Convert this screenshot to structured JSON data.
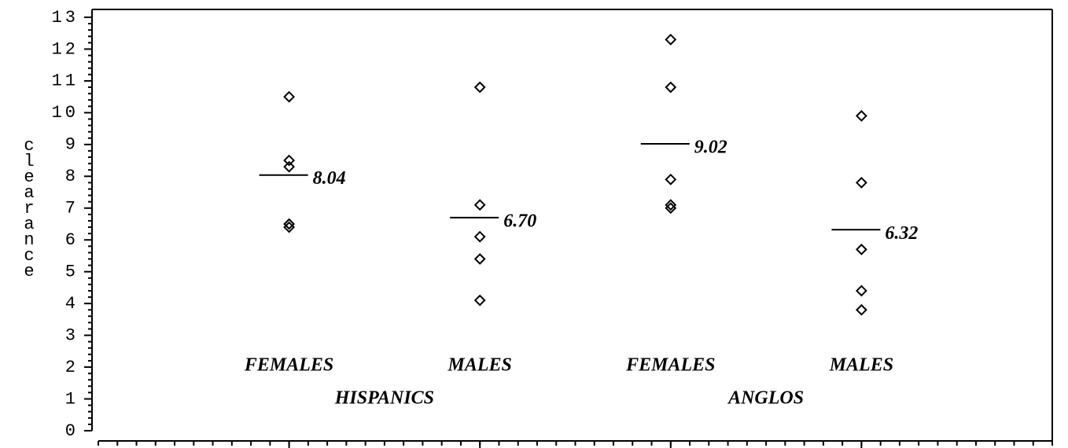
{
  "chart_data": {
    "type": "dot",
    "y_label": "clearance",
    "ylim": [
      0,
      13
    ],
    "yticks": [
      0,
      1,
      2,
      3,
      4,
      5,
      6,
      7,
      8,
      9,
      10,
      11,
      12,
      13
    ],
    "xlim": [
      0,
      5
    ],
    "xticks": [
      1,
      2,
      3,
      4
    ],
    "categories": [
      "FEMALES",
      "MALES",
      "FEMALES",
      "MALES"
    ],
    "groups": [
      "HISPANICS",
      "ANGLOS"
    ],
    "points": [
      [
        10.5,
        8.5,
        8.3,
        6.5,
        6.4
      ],
      [
        10.8,
        7.1,
        6.1,
        5.4,
        4.1
      ],
      [
        12.3,
        10.8,
        7.9,
        7.1,
        7.0
      ],
      [
        9.9,
        7.8,
        5.7,
        4.4,
        3.8
      ]
    ],
    "means": [
      8.04,
      6.7,
      9.02,
      6.32
    ],
    "mean_labels": [
      "8.04",
      "6.70",
      "9.02",
      "6.32"
    ],
    "color": "#000000"
  }
}
